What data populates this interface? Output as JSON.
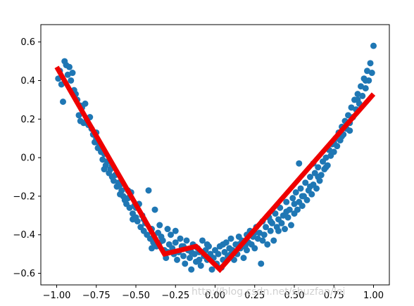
{
  "chart_data": {
    "type": "scatter",
    "title": "",
    "xlabel": "",
    "ylabel": "",
    "xlim": [
      -1.1,
      1.1
    ],
    "ylim": [
      -0.66,
      0.69
    ],
    "xticks": [
      -1.0,
      -0.75,
      -0.5,
      -0.25,
      0.0,
      0.25,
      0.5,
      0.75,
      1.0
    ],
    "xtick_labels": [
      "−1.00",
      "−0.75",
      "−0.50",
      "−0.25",
      "0.00",
      "0.25",
      "0.50",
      "0.75",
      "1.00"
    ],
    "yticks": [
      -0.6,
      -0.4,
      -0.2,
      0.0,
      0.2,
      0.4,
      0.6
    ],
    "ytick_labels": [
      "−0.6",
      "−0.4",
      "−0.2",
      "0.0",
      "0.2",
      "0.4",
      "0.6"
    ],
    "grid": false,
    "series": [
      {
        "kind": "scatter",
        "color": "#1f77b4",
        "points": [
          [
            -0.99,
            0.41
          ],
          [
            -0.97,
            0.38
          ],
          [
            -0.96,
            0.29
          ],
          [
            -0.95,
            0.5
          ],
          [
            -0.94,
            0.48
          ],
          [
            -0.93,
            0.43
          ],
          [
            -0.92,
            0.47
          ],
          [
            -0.91,
            0.4
          ],
          [
            -0.9,
            0.34
          ],
          [
            -0.89,
            0.35
          ],
          [
            -0.88,
            0.33
          ],
          [
            -0.87,
            0.3
          ],
          [
            -0.86,
            0.22
          ],
          [
            -0.85,
            0.19
          ],
          [
            -0.84,
            0.26
          ],
          [
            -0.83,
            0.18
          ],
          [
            -0.82,
            0.28
          ],
          [
            -0.81,
            0.2
          ],
          [
            -0.8,
            0.17
          ],
          [
            -0.79,
            0.21
          ],
          [
            -0.78,
            0.15
          ],
          [
            -0.77,
            0.12
          ],
          [
            -0.76,
            0.08
          ],
          [
            -0.75,
            0.1
          ],
          [
            -0.74,
            0.05
          ],
          [
            -0.73,
            0.07
          ],
          [
            -0.72,
            0.03
          ],
          [
            -0.71,
            -0.01
          ],
          [
            -0.7,
            0.02
          ],
          [
            -0.69,
            -0.04
          ],
          [
            -0.68,
            -0.02
          ],
          [
            -0.67,
            -0.08
          ],
          [
            -0.66,
            -0.06
          ],
          [
            -0.65,
            -0.1
          ],
          [
            -0.64,
            -0.12
          ],
          [
            -0.63,
            -0.09
          ],
          [
            -0.62,
            -0.15
          ],
          [
            -0.61,
            -0.13
          ],
          [
            -0.6,
            -0.19
          ],
          [
            -0.59,
            -0.17
          ],
          [
            -0.58,
            -0.2
          ],
          [
            -0.57,
            -0.22
          ],
          [
            -0.56,
            -0.24
          ],
          [
            -0.55,
            -0.21
          ],
          [
            -0.54,
            -0.26
          ],
          [
            -0.53,
            -0.18
          ],
          [
            -0.52,
            -0.29
          ],
          [
            -0.51,
            -0.25
          ],
          [
            -0.5,
            -0.31
          ],
          [
            -0.49,
            -0.33
          ],
          [
            -0.48,
            -0.24
          ],
          [
            -0.47,
            -0.36
          ],
          [
            -0.46,
            -0.3
          ],
          [
            -0.45,
            -0.38
          ],
          [
            -0.44,
            -0.34
          ],
          [
            -0.43,
            -0.4
          ],
          [
            -0.42,
            -0.17
          ],
          [
            -0.41,
            -0.42
          ],
          [
            -0.4,
            -0.37
          ],
          [
            -0.39,
            -0.44
          ],
          [
            -0.38,
            -0.27
          ],
          [
            -0.37,
            -0.46
          ],
          [
            -0.36,
            -0.39
          ],
          [
            -0.35,
            -0.35
          ],
          [
            -0.34,
            -0.41
          ],
          [
            -0.33,
            -0.43
          ],
          [
            -0.32,
            -0.48
          ],
          [
            -0.31,
            -0.52
          ],
          [
            -0.3,
            -0.37
          ],
          [
            -0.29,
            -0.45
          ],
          [
            -0.28,
            -0.4
          ],
          [
            -0.27,
            -0.47
          ],
          [
            -0.26,
            -0.5
          ],
          [
            -0.25,
            -0.44
          ],
          [
            -0.24,
            -0.53
          ],
          [
            -0.23,
            -0.49
          ],
          [
            -0.22,
            -0.42
          ],
          [
            -0.21,
            -0.46
          ],
          [
            -0.2,
            -0.51
          ],
          [
            -0.19,
            -0.55
          ],
          [
            -0.18,
            -0.43
          ],
          [
            -0.17,
            -0.48
          ],
          [
            -0.16,
            -0.52
          ],
          [
            -0.15,
            -0.58
          ],
          [
            -0.14,
            -0.45
          ],
          [
            -0.13,
            -0.5
          ],
          [
            -0.12,
            -0.54
          ],
          [
            -0.11,
            -0.47
          ],
          [
            -0.1,
            -0.49
          ],
          [
            -0.09,
            -0.56
          ],
          [
            -0.08,
            -0.43
          ],
          [
            -0.07,
            -0.51
          ],
          [
            -0.06,
            -0.48
          ],
          [
            -0.05,
            -0.53
          ],
          [
            -0.04,
            -0.46
          ],
          [
            -0.03,
            -0.5
          ],
          [
            -0.02,
            -0.58
          ],
          [
            -0.01,
            -0.52
          ],
          [
            0.0,
            -0.48
          ],
          [
            0.01,
            -0.55
          ],
          [
            0.02,
            -0.5
          ],
          [
            0.03,
            -0.46
          ],
          [
            0.04,
            -0.57
          ],
          [
            0.05,
            -0.53
          ],
          [
            0.06,
            -0.49
          ],
          [
            0.07,
            -0.44
          ],
          [
            0.08,
            -0.51
          ],
          [
            0.09,
            -0.47
          ],
          [
            0.1,
            -0.42
          ],
          [
            0.11,
            -0.48
          ],
          [
            0.12,
            -0.53
          ],
          [
            0.13,
            -0.45
          ],
          [
            0.14,
            -0.5
          ],
          [
            0.15,
            -0.41
          ],
          [
            0.16,
            -0.47
          ],
          [
            0.17,
            -0.43
          ],
          [
            0.18,
            -0.52
          ],
          [
            0.19,
            -0.46
          ],
          [
            0.2,
            -0.4
          ],
          [
            0.21,
            -0.44
          ],
          [
            0.22,
            -0.38
          ],
          [
            0.23,
            -0.45
          ],
          [
            0.24,
            -0.41
          ],
          [
            0.25,
            -0.47
          ],
          [
            0.26,
            -0.36
          ],
          [
            0.27,
            -0.42
          ],
          [
            0.28,
            -0.39
          ],
          [
            0.29,
            -0.55
          ],
          [
            0.3,
            -0.33
          ],
          [
            0.31,
            -0.4
          ],
          [
            0.32,
            -0.36
          ],
          [
            0.33,
            -0.45
          ],
          [
            0.34,
            -0.31
          ],
          [
            0.35,
            -0.38
          ],
          [
            0.36,
            -0.34
          ],
          [
            0.37,
            -0.43
          ],
          [
            0.38,
            -0.29
          ],
          [
            0.39,
            -0.36
          ],
          [
            0.4,
            -0.32
          ],
          [
            0.41,
            -0.26
          ],
          [
            0.42,
            -0.34
          ],
          [
            0.43,
            -0.3
          ],
          [
            0.44,
            -0.37
          ],
          [
            0.45,
            -0.23
          ],
          [
            0.46,
            -0.31
          ],
          [
            0.47,
            -0.27
          ],
          [
            0.48,
            -0.35
          ],
          [
            0.49,
            -0.21
          ],
          [
            0.5,
            -0.29
          ],
          [
            0.51,
            -0.18
          ],
          [
            0.52,
            -0.27
          ],
          [
            0.53,
            -0.23
          ],
          [
            0.54,
            -0.16
          ],
          [
            0.55,
            -0.25
          ],
          [
            0.56,
            -0.2
          ],
          [
            0.57,
            -0.13
          ],
          [
            0.58,
            -0.22
          ],
          [
            0.59,
            -0.17
          ],
          [
            0.6,
            -0.1
          ],
          [
            0.61,
            -0.19
          ],
          [
            0.62,
            -0.14
          ],
          [
            0.63,
            -0.08
          ],
          [
            0.64,
            -0.16
          ],
          [
            0.65,
            -0.05
          ],
          [
            0.66,
            -0.12
          ],
          [
            0.67,
            -0.09
          ],
          [
            0.68,
            -0.02
          ],
          [
            0.69,
            -0.06
          ],
          [
            0.7,
            0.0
          ],
          [
            0.71,
            -0.04
          ],
          [
            0.72,
            0.04
          ],
          [
            0.73,
            0.01
          ],
          [
            0.74,
            0.07
          ],
          [
            0.75,
            0.03
          ],
          [
            0.76,
            0.1
          ],
          [
            0.77,
            0.06
          ],
          [
            0.78,
            0.13
          ],
          [
            0.79,
            0.09
          ],
          [
            0.8,
            0.16
          ],
          [
            0.81,
            0.12
          ],
          [
            0.82,
            0.19
          ],
          [
            0.83,
            0.15
          ],
          [
            0.84,
            0.22
          ],
          [
            0.85,
            0.18
          ],
          [
            0.86,
            0.26
          ],
          [
            0.87,
            0.21
          ],
          [
            0.88,
            0.3
          ],
          [
            0.89,
            0.25
          ],
          [
            0.9,
            0.33
          ],
          [
            0.91,
            0.28
          ],
          [
            0.92,
            0.37
          ],
          [
            0.93,
            0.32
          ],
          [
            0.94,
            0.41
          ],
          [
            0.95,
            0.36
          ],
          [
            0.96,
            0.45
          ],
          [
            0.97,
            0.4
          ],
          [
            0.98,
            0.49
          ],
          [
            0.99,
            0.44
          ],
          [
            1.0,
            0.58
          ],
          [
            -0.98,
            0.45
          ],
          [
            -0.9,
            0.44
          ],
          [
            -0.85,
            0.27
          ],
          [
            -0.75,
            0.13
          ],
          [
            -0.7,
            -0.06
          ],
          [
            -0.65,
            -0.04
          ],
          [
            -0.6,
            -0.14
          ],
          [
            -0.55,
            -0.17
          ],
          [
            -0.5,
            -0.26
          ],
          [
            -0.45,
            -0.32
          ],
          [
            -0.4,
            -0.47
          ],
          [
            -0.35,
            -0.44
          ],
          [
            -0.3,
            -0.49
          ],
          [
            -0.25,
            -0.38
          ],
          [
            -0.2,
            -0.46
          ],
          [
            -0.15,
            -0.49
          ],
          [
            -0.1,
            -0.53
          ],
          [
            -0.05,
            -0.45
          ],
          [
            0.05,
            -0.45
          ],
          [
            0.1,
            -0.5
          ],
          [
            0.15,
            -0.45
          ],
          [
            0.2,
            -0.48
          ],
          [
            0.25,
            -0.39
          ],
          [
            0.3,
            -0.43
          ],
          [
            0.35,
            -0.33
          ],
          [
            0.4,
            -0.38
          ],
          [
            0.45,
            -0.28
          ],
          [
            0.5,
            -0.24
          ],
          [
            0.55,
            -0.2
          ],
          [
            0.6,
            -0.15
          ],
          [
            0.65,
            -0.1
          ],
          [
            0.7,
            -0.05
          ],
          [
            0.75,
            0.08
          ],
          [
            0.8,
            0.11
          ],
          [
            0.85,
            0.14
          ],
          [
            0.9,
            0.3
          ],
          [
            0.95,
            0.4
          ],
          [
            0.53,
            -0.03
          ],
          [
            0.62,
            -0.03
          ],
          [
            -0.52,
            -0.32
          ]
        ]
      },
      {
        "kind": "line",
        "color": "#ee0000",
        "points": [
          [
            -1.0,
            0.47
          ],
          [
            -0.32,
            -0.5
          ],
          [
            -0.12,
            -0.46
          ],
          [
            0.03,
            -0.58
          ],
          [
            1.0,
            0.33
          ]
        ]
      }
    ]
  },
  "watermark": "http://blog.csdn.net/shuzfan/lei"
}
